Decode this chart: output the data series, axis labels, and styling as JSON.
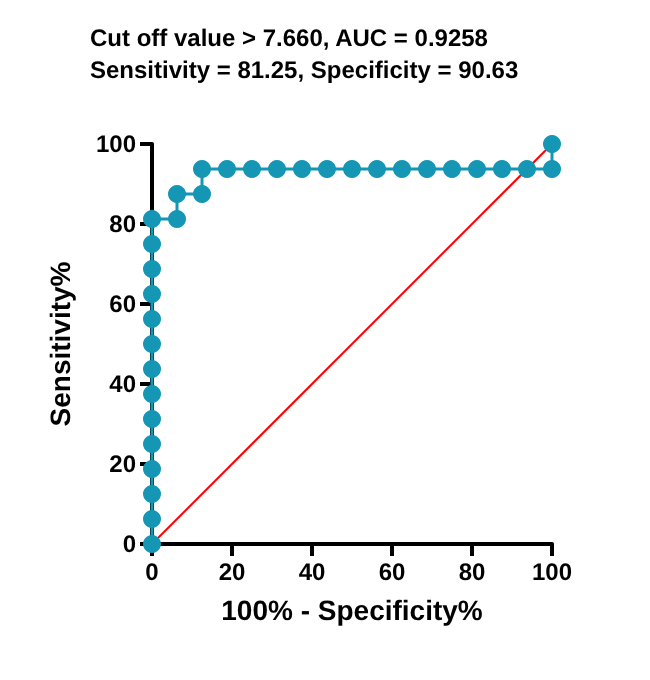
{
  "chart_data": {
    "type": "line",
    "title": "Cut off value > 7.660, AUC = 0.9258",
    "subtitle": "Sensitivity = 81.25, Specificity = 90.63",
    "xlabel": "100% - Specificity%",
    "ylabel": "Sensitivity%",
    "series": [
      {
        "color": "#1496b4",
        "marker": "circle",
        "x": [
          0,
          0,
          0,
          0,
          0,
          0,
          0,
          0,
          0,
          0,
          0,
          0,
          0,
          0,
          6.25,
          6.25,
          12.5,
          12.5,
          18.75,
          25,
          31.25,
          37.5,
          43.75,
          50,
          56.25,
          62.5,
          68.75,
          75,
          81.25,
          87.5,
          93.75,
          100,
          100
        ],
        "values": [
          0,
          6.25,
          12.5,
          18.75,
          25,
          31.25,
          37.5,
          43.75,
          50,
          56.25,
          62.5,
          68.75,
          75,
          81.25,
          81.25,
          87.5,
          87.5,
          93.75,
          93.75,
          93.75,
          93.75,
          93.75,
          93.75,
          93.75,
          93.75,
          93.75,
          93.75,
          93.75,
          93.75,
          93.75,
          93.75,
          93.75,
          100
        ]
      },
      {
        "color": "#ff0000",
        "marker": "none",
        "x": [
          0,
          100
        ],
        "values": [
          0,
          100
        ]
      }
    ],
    "xlim": [
      0,
      100
    ],
    "ylim": [
      0,
      100
    ],
    "xticks": [
      0,
      20,
      40,
      60,
      80,
      100
    ],
    "yticks": [
      0,
      20,
      40,
      60,
      80,
      100
    ],
    "grid": false
  }
}
